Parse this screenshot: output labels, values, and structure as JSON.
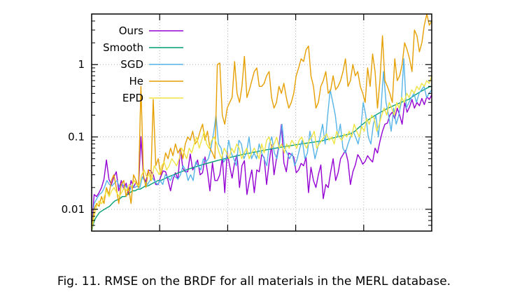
{
  "figure": {
    "caption": "Fig. 11.  RMSE on the BRDF for all materials in the MERL database."
  },
  "chart_data": {
    "type": "line",
    "title": "",
    "xlabel": "",
    "ylabel": "",
    "yscale": "log",
    "xlim": [
      0,
      100
    ],
    "ylim": [
      0.005,
      5
    ],
    "yticks": [
      {
        "value": 0.01,
        "label": "0.01"
      },
      {
        "value": 0.1,
        "label": "0.1"
      },
      {
        "value": 1,
        "label": "1"
      }
    ],
    "xticks": [
      20,
      40,
      60,
      80
    ],
    "grid": true,
    "legend_position": "top-left",
    "series": [
      {
        "name": "Ours",
        "color": "#9400d3",
        "values": [
          0.005,
          0.016,
          0.015,
          0.017,
          0.02,
          0.026,
          0.048,
          0.026,
          0.022,
          0.028,
          0.033,
          0.018,
          0.025,
          0.019,
          0.023,
          0.016,
          0.025,
          0.02,
          0.024,
          0.02,
          0.101,
          0.028,
          0.024,
          0.035,
          0.034,
          0.03,
          0.022,
          0.022,
          0.028,
          0.034,
          0.033,
          0.025,
          0.018,
          0.026,
          0.032,
          0.026,
          0.068,
          0.037,
          0.033,
          0.033,
          0.058,
          0.035,
          0.04,
          0.048,
          0.03,
          0.032,
          0.053,
          0.033,
          0.018,
          0.044,
          0.025,
          0.025,
          0.03,
          0.052,
          0.017,
          0.062,
          0.04,
          0.027,
          0.044,
          0.057,
          0.02,
          0.04,
          0.047,
          0.016,
          0.025,
          0.035,
          0.017,
          0.035,
          0.033,
          0.057,
          0.052,
          0.022,
          0.044,
          0.078,
          0.03,
          0.05,
          0.077,
          0.148,
          0.044,
          0.033,
          0.06,
          0.057,
          0.053,
          0.032,
          0.035,
          0.043,
          0.04,
          0.052,
          0.017,
          0.038,
          0.025,
          0.02,
          0.03,
          0.041,
          0.014,
          0.022,
          0.02,
          0.033,
          0.05,
          0.025,
          0.032,
          0.05,
          0.057,
          0.065,
          0.046,
          0.022,
          0.033,
          0.041,
          0.057,
          0.05,
          0.042,
          0.046,
          0.055,
          0.049,
          0.045,
          0.07,
          0.06,
          0.087,
          0.12,
          0.15,
          0.155,
          0.2,
          0.22,
          0.18,
          0.25,
          0.2,
          0.15,
          0.3,
          0.22,
          0.26,
          0.33,
          0.25,
          0.3,
          0.27,
          0.34,
          0.28,
          0.36,
          0.33,
          0.38
        ]
      },
      {
        "name": "Smooth",
        "color": "#009e73",
        "values": [
          0.005,
          0.007,
          0.008,
          0.009,
          0.0095,
          0.01,
          0.0105,
          0.011,
          0.012,
          0.013,
          0.0135,
          0.014,
          0.015,
          0.015,
          0.016,
          0.017,
          0.018,
          0.018,
          0.019,
          0.019,
          0.02,
          0.021,
          0.021,
          0.022,
          0.023,
          0.024,
          0.025,
          0.025,
          0.026,
          0.027,
          0.028,
          0.029,
          0.03,
          0.031,
          0.032,
          0.033,
          0.034,
          0.035,
          0.036,
          0.037,
          0.038,
          0.039,
          0.04,
          0.041,
          0.042,
          0.043,
          0.044,
          0.045,
          0.046,
          0.047,
          0.048,
          0.049,
          0.05,
          0.051,
          0.052,
          0.053,
          0.054,
          0.055,
          0.056,
          0.057,
          0.058,
          0.059,
          0.06,
          0.061,
          0.062,
          0.063,
          0.064,
          0.065,
          0.066,
          0.067,
          0.068,
          0.069,
          0.07,
          0.071,
          0.072,
          0.073,
          0.074,
          0.075,
          0.076,
          0.077,
          0.078,
          0.079,
          0.08,
          0.081,
          0.082,
          0.083,
          0.084,
          0.085,
          0.086,
          0.087,
          0.088,
          0.09,
          0.092,
          0.094,
          0.096,
          0.098,
          0.1,
          0.102,
          0.104,
          0.106,
          0.108,
          0.11,
          0.115,
          0.12,
          0.13,
          0.14,
          0.15,
          0.16,
          0.17,
          0.18,
          0.19,
          0.2,
          0.21,
          0.22,
          0.23,
          0.24,
          0.25,
          0.26,
          0.27,
          0.28,
          0.29,
          0.3,
          0.31,
          0.32,
          0.33,
          0.35,
          0.37,
          0.39,
          0.41,
          0.43,
          0.45,
          0.47,
          0.49,
          0.5
        ]
      },
      {
        "name": "SGD",
        "color": "#56b4e9",
        "values": [
          0.005,
          0.012,
          0.014,
          0.016,
          0.017,
          0.02,
          0.025,
          0.022,
          0.021,
          0.023,
          0.025,
          0.02,
          0.022,
          0.021,
          0.02,
          0.018,
          0.022,
          0.02,
          0.021,
          0.02,
          0.028,
          0.024,
          0.022,
          0.025,
          0.027,
          0.024,
          0.022,
          0.025,
          0.022,
          0.03,
          0.028,
          0.025,
          0.03,
          0.028,
          0.026,
          0.03,
          0.04,
          0.035,
          0.025,
          0.03,
          0.025,
          0.045,
          0.04,
          0.035,
          0.05,
          0.045,
          0.05,
          0.07,
          0.11,
          0.2,
          0.08,
          0.07,
          0.045,
          0.05,
          0.09,
          0.06,
          0.05,
          0.04,
          0.09,
          0.08,
          0.05,
          0.06,
          0.1,
          0.05,
          0.06,
          0.05,
          0.08,
          0.06,
          0.05,
          0.04,
          0.08,
          0.1,
          0.06,
          0.05,
          0.08,
          0.15,
          0.07,
          0.06,
          0.05,
          0.06,
          0.04,
          0.05,
          0.07,
          0.09,
          0.05,
          0.06,
          0.12,
          0.08,
          0.05,
          0.07,
          0.1,
          0.15,
          0.08,
          0.2,
          0.45,
          0.3,
          0.2,
          0.1,
          0.15,
          0.07,
          0.06,
          0.08,
          0.1,
          0.12,
          0.1,
          0.08,
          0.12,
          0.3,
          0.2,
          0.1,
          0.08,
          0.15,
          0.2,
          0.1,
          0.25,
          0.8,
          0.3,
          0.2,
          0.12,
          0.25,
          0.15,
          0.2,
          0.3,
          1.2,
          0.25,
          0.3,
          0.35,
          0.4,
          0.3,
          0.4,
          0.45,
          0.5,
          0.35,
          0.4,
          0.45
        ]
      },
      {
        "name": "He",
        "color": "#e69f00",
        "values": [
          0.005,
          0.01,
          0.012,
          0.011,
          0.015,
          0.012,
          0.02,
          0.016,
          0.025,
          0.03,
          0.02,
          0.012,
          0.022,
          0.025,
          0.015,
          0.02,
          0.012,
          0.03,
          0.025,
          0.02,
          0.5,
          0.03,
          0.02,
          0.035,
          0.025,
          0.33,
          0.04,
          0.05,
          0.03,
          0.04,
          0.06,
          0.05,
          0.07,
          0.055,
          0.08,
          0.06,
          0.07,
          0.05,
          0.08,
          0.1,
          0.09,
          0.12,
          0.08,
          0.09,
          0.12,
          0.15,
          0.09,
          0.12,
          0.07,
          0.06,
          0.05,
          1.0,
          1.05,
          0.2,
          0.15,
          0.25,
          0.3,
          0.35,
          1.1,
          0.4,
          0.3,
          0.5,
          1.3,
          0.35,
          0.45,
          0.6,
          0.8,
          0.9,
          0.5,
          0.5,
          0.55,
          0.7,
          0.8,
          0.35,
          0.25,
          0.3,
          0.5,
          0.4,
          0.55,
          0.35,
          0.25,
          0.3,
          0.4,
          0.7,
          0.9,
          1.2,
          1.1,
          1.6,
          1.8,
          0.7,
          0.5,
          0.25,
          0.3,
          0.5,
          0.6,
          0.8,
          0.4,
          0.45,
          0.7,
          0.45,
          0.5,
          0.6,
          0.8,
          1.2,
          0.5,
          0.6,
          1.0,
          0.7,
          0.8,
          0.5,
          0.4,
          0.3,
          0.9,
          0.5,
          1.4,
          0.8,
          0.25,
          0.6,
          2.5,
          0.6,
          0.5,
          0.4,
          0.3,
          1.2,
          0.6,
          0.7,
          1.0,
          2.0,
          1.6,
          1.2,
          0.8,
          3.0,
          2.5,
          1.5,
          2.0,
          3.5,
          5.0,
          3.5,
          4.0
        ]
      },
      {
        "name": "EPD",
        "color": "#f0e442",
        "values": [
          0.005,
          0.008,
          0.011,
          0.013,
          0.012,
          0.015,
          0.018,
          0.015,
          0.018,
          0.02,
          0.017,
          0.015,
          0.017,
          0.02,
          0.018,
          0.022,
          0.02,
          0.025,
          0.022,
          0.021,
          0.03,
          0.035,
          0.028,
          0.03,
          0.025,
          0.04,
          0.035,
          0.03,
          0.04,
          0.045,
          0.035,
          0.04,
          0.05,
          0.045,
          0.04,
          0.05,
          0.07,
          0.06,
          0.05,
          0.07,
          0.06,
          0.08,
          0.1,
          0.07,
          0.09,
          0.12,
          0.08,
          0.07,
          0.09,
          0.1,
          0.08,
          0.06,
          0.05,
          0.07,
          0.06,
          0.05,
          0.07,
          0.06,
          0.08,
          0.07,
          0.05,
          0.06,
          0.07,
          0.05,
          0.06,
          0.07,
          0.06,
          0.05,
          0.08,
          0.06,
          0.09,
          0.1,
          0.07,
          0.08,
          0.1,
          0.07,
          0.08,
          0.06,
          0.08,
          0.07,
          0.09,
          0.08,
          0.07,
          0.09,
          0.1,
          0.08,
          0.07,
          0.09,
          0.1,
          0.12,
          0.07,
          0.08,
          0.09,
          0.1,
          0.11,
          0.09,
          0.1,
          0.08,
          0.12,
          0.1,
          0.09,
          0.11,
          0.1,
          0.12,
          0.1,
          0.15,
          0.12,
          0.1,
          0.14,
          0.12,
          0.18,
          0.15,
          0.2,
          0.18,
          0.12,
          0.15,
          0.2,
          0.25,
          0.2,
          0.3,
          0.25,
          0.2,
          0.3,
          0.25,
          0.35,
          0.3,
          0.4,
          0.35,
          0.45,
          0.4,
          0.5,
          0.45,
          0.55,
          0.5,
          0.6,
          0.55,
          0.7
        ]
      }
    ]
  }
}
